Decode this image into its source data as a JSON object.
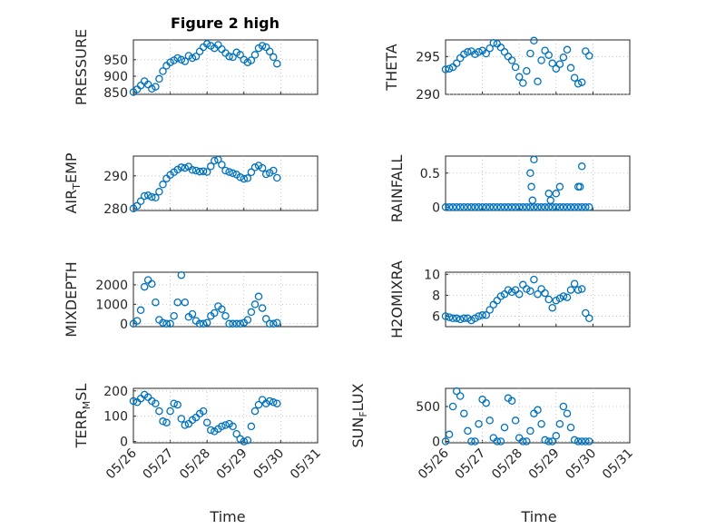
{
  "figure": {
    "title": "Figure 2 high",
    "xlabel": "Time",
    "xticks": [
      "05/26",
      "05/27",
      "05/28",
      "05/29",
      "05/30",
      "05/31"
    ],
    "marker_color": "#0072BD"
  },
  "chart_data": [
    {
      "type": "scatter",
      "name": "pressure",
      "ylabel": "PRESSURE",
      "title": "Figure 2 high",
      "xlabel": "",
      "xlim": [
        0,
        5
      ],
      "ylim": [
        845,
        1010
      ],
      "yticks": [
        850,
        900,
        950
      ],
      "grid": true,
      "x": [
        0.0,
        0.1,
        0.2,
        0.3,
        0.4,
        0.5,
        0.6,
        0.7,
        0.8,
        0.9,
        1.0,
        1.1,
        1.2,
        1.3,
        1.4,
        1.5,
        1.6,
        1.7,
        1.8,
        1.9,
        2.0,
        2.1,
        2.2,
        2.3,
        2.4,
        2.5,
        2.6,
        2.7,
        2.8,
        2.9,
        3.0,
        3.1,
        3.2,
        3.3,
        3.4,
        3.5,
        3.6,
        3.7,
        3.8,
        3.9
      ],
      "y": [
        852,
        860,
        872,
        885,
        875,
        862,
        868,
        892,
        915,
        932,
        942,
        948,
        955,
        950,
        945,
        962,
        955,
        960,
        975,
        988,
        998,
        992,
        985,
        995,
        982,
        970,
        960,
        958,
        972,
        965,
        950,
        942,
        948,
        965,
        985,
        992,
        988,
        975,
        958,
        938
      ]
    },
    {
      "type": "scatter",
      "name": "theta",
      "ylabel": "THETA",
      "xlim": [
        0,
        5
      ],
      "ylim": [
        290,
        297.2
      ],
      "yticks": [
        290,
        295
      ],
      "grid": true,
      "x": [
        0.0,
        0.1,
        0.2,
        0.3,
        0.4,
        0.5,
        0.6,
        0.7,
        0.8,
        0.9,
        1.0,
        1.1,
        1.2,
        1.3,
        1.4,
        1.5,
        1.6,
        1.7,
        1.8,
        1.9,
        2.0,
        2.1,
        2.2,
        2.3,
        2.4,
        2.5,
        2.6,
        2.7,
        2.8,
        2.9,
        3.0,
        3.1,
        3.2,
        3.3,
        3.4,
        3.5,
        3.6,
        3.7,
        3.8,
        3.9
      ],
      "y": [
        293.3,
        293.4,
        293.6,
        294.1,
        294.8,
        295.3,
        295.6,
        295.7,
        295.3,
        295.6,
        295.8,
        295.4,
        296.1,
        296.8,
        296.7,
        296.2,
        295.6,
        295.0,
        294.5,
        293.6,
        292.3,
        291.5,
        293.1,
        295.4,
        297.1,
        291.7,
        294.5,
        295.8,
        295.2,
        294.1,
        293.4,
        294.0,
        294.9,
        295.9,
        293.5,
        292.2,
        291.4,
        291.6,
        295.7,
        295.1
      ]
    },
    {
      "type": "scatter",
      "name": "air_temp",
      "ylabel": "AIR_TEMP",
      "xlim": [
        0,
        5
      ],
      "ylim": [
        279.5,
        296
      ],
      "yticks": [
        280,
        290
      ],
      "grid": true,
      "x": [
        0.0,
        0.1,
        0.2,
        0.3,
        0.4,
        0.5,
        0.6,
        0.7,
        0.8,
        0.9,
        1.0,
        1.1,
        1.2,
        1.3,
        1.4,
        1.5,
        1.6,
        1.7,
        1.8,
        1.9,
        2.0,
        2.1,
        2.2,
        2.3,
        2.4,
        2.5,
        2.6,
        2.7,
        2.8,
        2.9,
        3.0,
        3.1,
        3.2,
        3.3,
        3.4,
        3.5,
        3.6,
        3.7,
        3.8,
        3.9
      ],
      "y": [
        280.1,
        280.9,
        282.3,
        283.9,
        284.1,
        283.6,
        283.4,
        285.2,
        287.4,
        289.2,
        290.3,
        291.1,
        291.9,
        292.6,
        292.4,
        292.8,
        291.8,
        291.6,
        291.3,
        291.4,
        291.2,
        292.9,
        294.6,
        294.9,
        293.4,
        291.6,
        291.2,
        290.8,
        290.4,
        289.6,
        289.1,
        289.3,
        291.1,
        292.6,
        293.1,
        292.4,
        290.5,
        290.9,
        291.6,
        289.4
      ]
    },
    {
      "type": "scatter",
      "name": "rainfall",
      "ylabel": "RAINFALL",
      "xlim": [
        0,
        5
      ],
      "ylim": [
        -0.05,
        0.75
      ],
      "yticks": [
        0,
        0.5
      ],
      "grid": true,
      "x": [
        0.0,
        0.1,
        0.2,
        0.3,
        0.4,
        0.5,
        0.6,
        0.7,
        0.8,
        0.9,
        1.0,
        1.1,
        1.2,
        1.3,
        1.4,
        1.5,
        1.6,
        1.7,
        1.8,
        1.9,
        2.0,
        2.1,
        2.2,
        2.3,
        2.4,
        2.5,
        2.6,
        2.7,
        2.8,
        2.9,
        3.0,
        3.1,
        3.2,
        3.3,
        3.4,
        3.5,
        3.6,
        3.7,
        3.8,
        3.9,
        2.3,
        2.33,
        2.36,
        2.4,
        2.8,
        2.85,
        3.0,
        3.1,
        3.6,
        3.65,
        3.7
      ],
      "y": [
        0,
        0,
        0,
        0,
        0,
        0,
        0,
        0,
        0,
        0,
        0,
        0,
        0,
        0,
        0,
        0,
        0,
        0,
        0,
        0,
        0,
        0,
        0,
        0,
        0,
        0,
        0,
        0,
        0,
        0,
        0,
        0,
        0,
        0,
        0,
        0,
        0,
        0,
        0,
        0,
        0.5,
        0.3,
        0.1,
        0.7,
        0.2,
        0.1,
        0.2,
        0.3,
        0.3,
        0.3,
        0.6
      ]
    },
    {
      "type": "scatter",
      "name": "mixdepth",
      "ylabel": "MIXDEPTH",
      "xlim": [
        0,
        5
      ],
      "ylim": [
        -150,
        2650
      ],
      "yticks": [
        0,
        1000,
        2000
      ],
      "grid": true,
      "x": [
        0.0,
        0.1,
        0.2,
        0.3,
        0.4,
        0.5,
        0.6,
        0.7,
        0.8,
        0.9,
        1.0,
        1.1,
        1.2,
        1.3,
        1.4,
        1.5,
        1.6,
        1.7,
        1.8,
        1.9,
        2.0,
        2.1,
        2.2,
        2.3,
        2.4,
        2.5,
        2.6,
        2.7,
        2.8,
        2.9,
        3.0,
        3.1,
        3.2,
        3.3,
        3.4,
        3.5,
        3.6,
        3.7,
        3.8,
        3.9
      ],
      "y": [
        0,
        150,
        700,
        1900,
        2250,
        2050,
        1100,
        200,
        50,
        0,
        0,
        400,
        1100,
        2500,
        1100,
        350,
        500,
        150,
        0,
        0,
        50,
        400,
        550,
        900,
        750,
        400,
        0,
        0,
        0,
        0,
        50,
        200,
        600,
        1000,
        1400,
        800,
        250,
        0,
        0,
        50
      ]
    },
    {
      "type": "scatter",
      "name": "h2omixra",
      "ylabel": "H2OMIXRA",
      "xlim": [
        0,
        5
      ],
      "ylim": [
        5.0,
        10.2
      ],
      "yticks": [
        6,
        8,
        10
      ],
      "grid": true,
      "x": [
        0.0,
        0.1,
        0.2,
        0.3,
        0.4,
        0.5,
        0.6,
        0.7,
        0.8,
        0.9,
        1.0,
        1.1,
        1.2,
        1.3,
        1.4,
        1.5,
        1.6,
        1.7,
        1.8,
        1.9,
        2.0,
        2.1,
        2.2,
        2.3,
        2.4,
        2.5,
        2.6,
        2.7,
        2.8,
        2.9,
        3.0,
        3.1,
        3.2,
        3.3,
        3.4,
        3.5,
        3.6,
        3.7,
        3.8,
        3.9
      ],
      "y": [
        6.0,
        5.9,
        5.8,
        5.8,
        5.7,
        5.8,
        5.8,
        5.6,
        5.8,
        6.0,
        6.1,
        6.1,
        6.6,
        7.1,
        7.5,
        7.9,
        8.1,
        8.5,
        8.3,
        8.5,
        8.1,
        9.0,
        8.6,
        8.4,
        9.5,
        8.1,
        8.6,
        8.2,
        7.6,
        6.8,
        7.5,
        7.7,
        7.9,
        7.8,
        8.5,
        9.1,
        8.5,
        8.6,
        6.3,
        5.8
      ]
    },
    {
      "type": "scatter",
      "name": "terr_msl",
      "ylabel": "TERR_MSL",
      "xlim": [
        0,
        5
      ],
      "ylim": [
        -5,
        210
      ],
      "yticks": [
        0,
        100,
        200
      ],
      "grid": true,
      "x": [
        0.0,
        0.1,
        0.2,
        0.3,
        0.4,
        0.5,
        0.6,
        0.7,
        0.8,
        0.9,
        1.0,
        1.1,
        1.2,
        1.3,
        1.4,
        1.5,
        1.6,
        1.7,
        1.8,
        1.9,
        2.0,
        2.1,
        2.2,
        2.3,
        2.4,
        2.5,
        2.6,
        2.7,
        2.8,
        2.9,
        3.0,
        3.1,
        3.2,
        3.3,
        3.4,
        3.5,
        3.6,
        3.7,
        3.8,
        3.9
      ],
      "y": [
        160,
        155,
        170,
        185,
        175,
        160,
        150,
        120,
        80,
        75,
        120,
        150,
        145,
        90,
        65,
        70,
        85,
        95,
        110,
        120,
        75,
        45,
        40,
        50,
        60,
        65,
        70,
        60,
        30,
        10,
        0,
        5,
        60,
        120,
        145,
        165,
        150,
        160,
        155,
        150
      ]
    },
    {
      "type": "scatter",
      "name": "sun_flux",
      "ylabel": "SUN_FLUX",
      "xlim": [
        0,
        5
      ],
      "ylim": [
        -20,
        760
      ],
      "yticks": [
        0,
        500
      ],
      "grid": true,
      "x": [
        0.0,
        0.1,
        0.2,
        0.3,
        0.4,
        0.5,
        0.6,
        0.7,
        0.8,
        0.9,
        1.0,
        1.1,
        1.2,
        1.3,
        1.4,
        1.5,
        1.6,
        1.7,
        1.8,
        1.9,
        2.0,
        2.1,
        2.2,
        2.3,
        2.4,
        2.5,
        2.6,
        2.7,
        2.8,
        2.9,
        3.0,
        3.1,
        3.2,
        3.3,
        3.4,
        3.5,
        3.6,
        3.7,
        3.8,
        3.9
      ],
      "y": [
        0,
        100,
        500,
        720,
        650,
        400,
        150,
        0,
        0,
        250,
        600,
        550,
        300,
        50,
        0,
        0,
        200,
        620,
        580,
        300,
        50,
        0,
        0,
        150,
        400,
        450,
        250,
        20,
        0,
        0,
        80,
        250,
        500,
        400,
        200,
        20,
        0,
        0,
        0,
        0
      ]
    }
  ]
}
